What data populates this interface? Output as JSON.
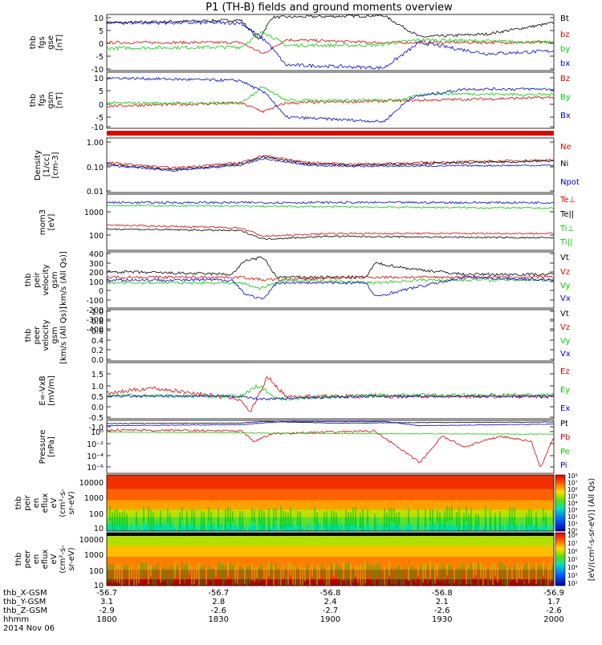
{
  "title": "P1 (TH-B) fields and ground moments overview",
  "colors": {
    "black": "#000000",
    "red": "#e00000",
    "green": "#00d000",
    "blue": "#0000e0",
    "ring": "#e00000"
  },
  "panels": [
    {
      "key": "fgs",
      "ylabel": [
        "thb",
        "fgs",
        "gse",
        "[nT]"
      ],
      "ticks": [
        "10",
        "5",
        "0",
        "-5",
        "-10"
      ],
      "legend": [
        {
          "t": "Bt",
          "c": "black"
        },
        {
          "t": "bz",
          "c": "red"
        },
        {
          "t": "by",
          "c": "green"
        },
        {
          "t": "bx",
          "c": "blue"
        }
      ]
    },
    {
      "key": "fgs_gsm",
      "ylabel": [
        "thb",
        "fgs",
        "gsm",
        "[nT]"
      ],
      "ticks": [
        "10",
        "5",
        "0",
        "-5",
        "-10"
      ],
      "legend": [
        {
          "t": "Bz",
          "c": "red"
        },
        {
          "t": "By",
          "c": "green"
        },
        {
          "t": "Bx",
          "c": "blue"
        }
      ]
    },
    {
      "key": "density",
      "ylabel": [
        "Density",
        "[1/cc]",
        "[cm-3]"
      ],
      "ticks": [
        "1.00",
        "0.10",
        "0.01"
      ],
      "legend": [
        {
          "t": "Ne",
          "c": "red"
        },
        {
          "t": "Ni",
          "c": "black"
        },
        {
          "t": "Npot",
          "c": "blue"
        }
      ]
    },
    {
      "key": "temp",
      "ylabel": [
        "mom3",
        "[eV]"
      ],
      "ticks": [
        "1000",
        "100"
      ],
      "legend": [
        {
          "t": "Te⊥",
          "c": "red"
        },
        {
          "t": "Te||",
          "c": "black"
        },
        {
          "t": "Ti⊥",
          "c": "green"
        },
        {
          "t": "Ti||",
          "c": "green"
        }
      ]
    },
    {
      "key": "peir_vel",
      "ylabel": [
        "thb",
        "peir",
        "velocity",
        "gsm",
        "[km/s (All Qs)]"
      ],
      "ticks": [
        "400",
        "300",
        "200",
        "100",
        "0",
        "-100",
        "-200",
        "-300",
        "-400"
      ],
      "legend": [
        {
          "t": "Vt",
          "c": "black"
        },
        {
          "t": "Vz",
          "c": "red"
        },
        {
          "t": "Vy",
          "c": "green"
        },
        {
          "t": "Vx",
          "c": "blue"
        }
      ]
    },
    {
      "key": "peer_vel",
      "ylabel": [
        "thb",
        "peer",
        "velocity",
        "gsm",
        "[km/s (All Qs)]"
      ],
      "ticks": [
        "1.0",
        "0.8",
        "0.6",
        "0.4",
        "0.2",
        "0.0"
      ],
      "legend": [
        {
          "t": "Vt",
          "c": "black"
        },
        {
          "t": "Vz",
          "c": "red"
        },
        {
          "t": "Vy",
          "c": "green"
        },
        {
          "t": "Vx",
          "c": "blue"
        }
      ]
    },
    {
      "key": "efield",
      "ylabel": [
        "E=-VxB",
        "[mV/m]"
      ],
      "ticks": [
        "1.5",
        "1.0",
        "0.5",
        "0.0",
        "-0.5",
        "-1.0"
      ],
      "legend": [
        {
          "t": "Ez",
          "c": "red"
        },
        {
          "t": "Ey",
          "c": "green"
        },
        {
          "t": "Ex",
          "c": "blue"
        }
      ]
    },
    {
      "key": "pressure",
      "ylabel": [
        "Pressure",
        "[nPa]"
      ],
      "ticks": [
        "10⁰",
        "10⁻²",
        "10⁻⁴",
        "10⁻⁶"
      ],
      "legend": [
        {
          "t": "Pt",
          "c": "black"
        },
        {
          "t": "Pb",
          "c": "red"
        },
        {
          "t": "Pe",
          "c": "green"
        },
        {
          "t": "Pi",
          "c": "blue"
        }
      ]
    },
    {
      "key": "peir_en",
      "ylabel": [
        "thb",
        "peir",
        "en",
        "eflux",
        "eV",
        "(cm²-s-",
        "sr-eV)"
      ],
      "ticks": [
        "10000",
        "1000",
        "100",
        "10"
      ],
      "legend": []
    },
    {
      "key": "peer_en",
      "ylabel": [
        "thb",
        "peer",
        "en",
        "eflux",
        "eV",
        "(cm²-s-",
        "sr-eV)"
      ],
      "ticks": [
        "10000",
        "1000",
        "100",
        "10"
      ],
      "legend": []
    }
  ],
  "colorbar": {
    "top_ticks": [
      "10⁸",
      "10⁷",
      "10⁶",
      "10⁵",
      "10⁴",
      "10³",
      "10²",
      "10¹",
      "10⁰"
    ],
    "bottom_ticks": [
      "10⁸",
      "10⁷",
      "10⁶",
      "10⁵",
      "10⁴",
      "10³",
      "10²"
    ],
    "label": "[eV/(cm²-s-sr-eV)] (All Qs)"
  },
  "xaxis": {
    "rows": [
      {
        "label": "thb_X-GSM",
        "values": [
          "-56.7",
          "-56.7",
          "-56.8",
          "-56.8",
          "-56.9"
        ]
      },
      {
        "label": "thb_Y-GSM",
        "values": [
          "3.1",
          "2.8",
          "2.4",
          "2.1",
          "1.7"
        ]
      },
      {
        "label": "thb_Z-GSM",
        "values": [
          "-2.9",
          "-2.6",
          "-2.7",
          "-2.6",
          "-2.6"
        ]
      },
      {
        "label": "hhmm",
        "values": [
          "1800",
          "1830",
          "1900",
          "1930",
          "2000"
        ]
      }
    ],
    "date": "2014 Nov 06"
  }
}
